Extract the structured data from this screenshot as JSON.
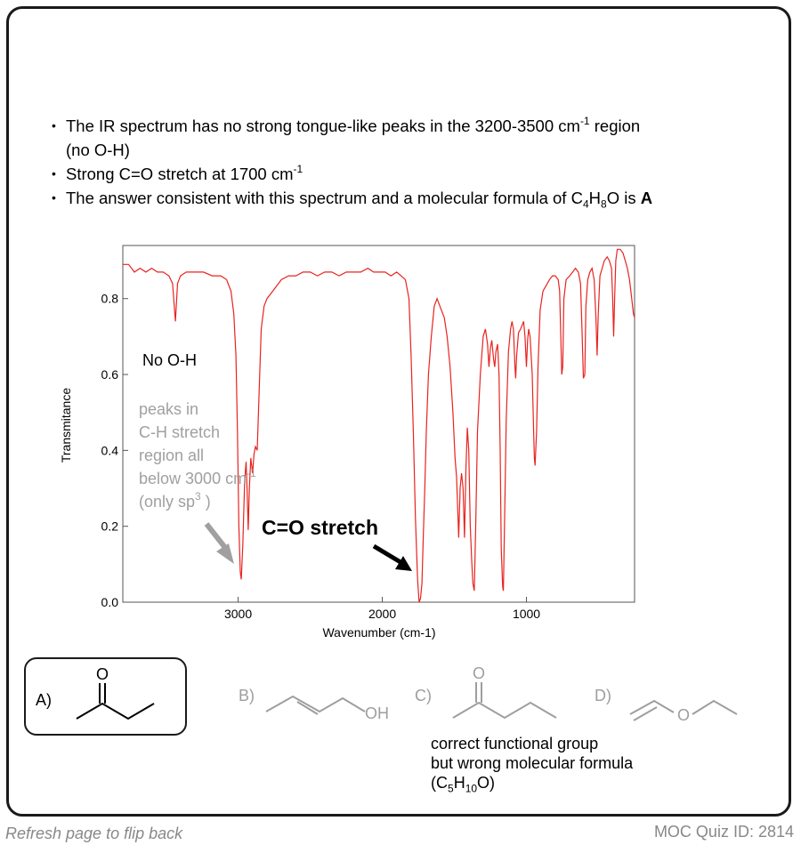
{
  "bullets": {
    "b1_part1": "The IR spectrum has no strong tongue-like peaks in the 3200-3500 cm",
    "b1_sup": "-1",
    "b1_part2": " region",
    "b1_line2": "(no O-H)",
    "b2_text": "Strong C=O stretch at 1700 cm",
    "b2_sup": "-1",
    "b3_text": "The answer consistent with this spectrum and a molecular formula of C",
    "b3_sub1": "4",
    "b3_h": "H",
    "b3_sub2": "8",
    "b3_o": "O is ",
    "b3_answer": "A"
  },
  "chart_data": {
    "type": "line",
    "xlabel": "Wavenumber (cm-1)",
    "ylabel": "Transmitance",
    "xlim": [
      3800,
      250
    ],
    "ylim": [
      0,
      0.94
    ],
    "x_reversed": true,
    "xticks": [
      3000,
      2000,
      1000
    ],
    "yticks": [
      0.0,
      0.2,
      0.4,
      0.6,
      0.8
    ],
    "ytick_labels": [
      "0.0",
      "0.2",
      "0.4",
      "0.6",
      "0.8"
    ],
    "series": [
      {
        "color": "#e8231f",
        "points": [
          [
            3800,
            0.89
          ],
          [
            3760,
            0.89
          ],
          [
            3720,
            0.87
          ],
          [
            3680,
            0.88
          ],
          [
            3640,
            0.87
          ],
          [
            3600,
            0.88
          ],
          [
            3560,
            0.87
          ],
          [
            3520,
            0.87
          ],
          [
            3480,
            0.86
          ],
          [
            3455,
            0.84
          ],
          [
            3435,
            0.74
          ],
          [
            3420,
            0.84
          ],
          [
            3400,
            0.86
          ],
          [
            3360,
            0.87
          ],
          [
            3300,
            0.87
          ],
          [
            3240,
            0.87
          ],
          [
            3180,
            0.86
          ],
          [
            3120,
            0.86
          ],
          [
            3080,
            0.85
          ],
          [
            3050,
            0.82
          ],
          [
            3030,
            0.76
          ],
          [
            3015,
            0.65
          ],
          [
            3005,
            0.45
          ],
          [
            2995,
            0.2
          ],
          [
            2985,
            0.08
          ],
          [
            2978,
            0.06
          ],
          [
            2968,
            0.15
          ],
          [
            2955,
            0.32
          ],
          [
            2945,
            0.37
          ],
          [
            2938,
            0.3
          ],
          [
            2930,
            0.19
          ],
          [
            2922,
            0.3
          ],
          [
            2912,
            0.38
          ],
          [
            2900,
            0.34
          ],
          [
            2890,
            0.39
          ],
          [
            2880,
            0.41
          ],
          [
            2868,
            0.4
          ],
          [
            2855,
            0.55
          ],
          [
            2840,
            0.72
          ],
          [
            2820,
            0.78
          ],
          [
            2800,
            0.8
          ],
          [
            2760,
            0.82
          ],
          [
            2700,
            0.85
          ],
          [
            2650,
            0.86
          ],
          [
            2600,
            0.86
          ],
          [
            2550,
            0.87
          ],
          [
            2500,
            0.87
          ],
          [
            2450,
            0.86
          ],
          [
            2400,
            0.87
          ],
          [
            2350,
            0.87
          ],
          [
            2300,
            0.86
          ],
          [
            2250,
            0.87
          ],
          [
            2200,
            0.87
          ],
          [
            2150,
            0.87
          ],
          [
            2100,
            0.88
          ],
          [
            2060,
            0.87
          ],
          [
            2020,
            0.87
          ],
          [
            1980,
            0.87
          ],
          [
            1940,
            0.86
          ],
          [
            1900,
            0.87
          ],
          [
            1870,
            0.86
          ],
          [
            1840,
            0.85
          ],
          [
            1815,
            0.8
          ],
          [
            1800,
            0.65
          ],
          [
            1785,
            0.45
          ],
          [
            1770,
            0.22
          ],
          [
            1755,
            0.06
          ],
          [
            1745,
            0.0
          ],
          [
            1735,
            0.01
          ],
          [
            1725,
            0.05
          ],
          [
            1715,
            0.18
          ],
          [
            1705,
            0.3
          ],
          [
            1695,
            0.45
          ],
          [
            1680,
            0.6
          ],
          [
            1660,
            0.7
          ],
          [
            1640,
            0.78
          ],
          [
            1620,
            0.8
          ],
          [
            1600,
            0.78
          ],
          [
            1570,
            0.75
          ],
          [
            1550,
            0.7
          ],
          [
            1530,
            0.62
          ],
          [
            1510,
            0.5
          ],
          [
            1495,
            0.38
          ],
          [
            1485,
            0.33
          ],
          [
            1470,
            0.17
          ],
          [
            1460,
            0.3
          ],
          [
            1450,
            0.34
          ],
          [
            1440,
            0.3
          ],
          [
            1430,
            0.17
          ],
          [
            1420,
            0.35
          ],
          [
            1410,
            0.46
          ],
          [
            1400,
            0.4
          ],
          [
            1390,
            0.2
          ],
          [
            1380,
            0.11
          ],
          [
            1372,
            0.05
          ],
          [
            1362,
            0.03
          ],
          [
            1352,
            0.2
          ],
          [
            1340,
            0.45
          ],
          [
            1320,
            0.6
          ],
          [
            1300,
            0.7
          ],
          [
            1285,
            0.72
          ],
          [
            1270,
            0.68
          ],
          [
            1260,
            0.62
          ],
          [
            1250,
            0.67
          ],
          [
            1240,
            0.69
          ],
          [
            1228,
            0.64
          ],
          [
            1220,
            0.62
          ],
          [
            1212,
            0.66
          ],
          [
            1200,
            0.68
          ],
          [
            1190,
            0.6
          ],
          [
            1182,
            0.4
          ],
          [
            1175,
            0.14
          ],
          [
            1165,
            0.04
          ],
          [
            1160,
            0.03
          ],
          [
            1150,
            0.25
          ],
          [
            1140,
            0.48
          ],
          [
            1125,
            0.66
          ],
          [
            1110,
            0.72
          ],
          [
            1100,
            0.74
          ],
          [
            1090,
            0.72
          ],
          [
            1080,
            0.62
          ],
          [
            1075,
            0.59
          ],
          [
            1068,
            0.65
          ],
          [
            1055,
            0.71
          ],
          [
            1040,
            0.72
          ],
          [
            1020,
            0.74
          ],
          [
            1010,
            0.7
          ],
          [
            1000,
            0.62
          ],
          [
            992,
            0.69
          ],
          [
            985,
            0.72
          ],
          [
            975,
            0.7
          ],
          [
            960,
            0.6
          ],
          [
            950,
            0.45
          ],
          [
            945,
            0.38
          ],
          [
            940,
            0.36
          ],
          [
            930,
            0.45
          ],
          [
            920,
            0.62
          ],
          [
            905,
            0.77
          ],
          [
            885,
            0.82
          ],
          [
            870,
            0.83
          ],
          [
            855,
            0.84
          ],
          [
            840,
            0.85
          ],
          [
            820,
            0.86
          ],
          [
            800,
            0.86
          ],
          [
            780,
            0.85
          ],
          [
            770,
            0.82
          ],
          [
            762,
            0.7
          ],
          [
            755,
            0.6
          ],
          [
            748,
            0.62
          ],
          [
            740,
            0.8
          ],
          [
            725,
            0.85
          ],
          [
            700,
            0.86
          ],
          [
            680,
            0.87
          ],
          [
            660,
            0.88
          ],
          [
            640,
            0.87
          ],
          [
            625,
            0.84
          ],
          [
            615,
            0.72
          ],
          [
            605,
            0.59
          ],
          [
            595,
            0.6
          ],
          [
            588,
            0.78
          ],
          [
            575,
            0.85
          ],
          [
            560,
            0.87
          ],
          [
            545,
            0.88
          ],
          [
            530,
            0.85
          ],
          [
            518,
            0.75
          ],
          [
            510,
            0.65
          ],
          [
            502,
            0.76
          ],
          [
            490,
            0.86
          ],
          [
            475,
            0.88
          ],
          [
            460,
            0.9
          ],
          [
            440,
            0.91
          ],
          [
            425,
            0.9
          ],
          [
            410,
            0.88
          ],
          [
            402,
            0.8
          ],
          [
            395,
            0.7
          ],
          [
            388,
            0.8
          ],
          [
            380,
            0.9
          ],
          [
            370,
            0.93
          ],
          [
            350,
            0.93
          ],
          [
            330,
            0.92
          ],
          [
            315,
            0.9
          ],
          [
            300,
            0.88
          ],
          [
            285,
            0.85
          ],
          [
            270,
            0.8
          ],
          [
            258,
            0.76
          ],
          [
            250,
            0.75
          ]
        ]
      }
    ],
    "annotations": {
      "no_oh": "No O-H",
      "ch_line1": "peaks in",
      "ch_line2": "C-H stretch",
      "ch_line3": "region all",
      "ch_line4a": "below 3000 cm",
      "ch_line4sup": "-1",
      "ch_line5a": "(only sp",
      "ch_line5sup": "3",
      "ch_line5b": " )",
      "co_label": "C=O stretch",
      "annotation_gray": "#a0a0a0"
    }
  },
  "options": {
    "a_label": "A)",
    "b_label": "B)",
    "c_label": "C)",
    "d_label": "D)",
    "oxygen": "O",
    "oh": "OH",
    "answer_gray": "#9e9e9e"
  },
  "note": {
    "line1": "correct functional group",
    "line2": "but wrong molecular formula",
    "line3a": "(C",
    "line3sub1": "5",
    "line3h": "H",
    "line3sub2": "10",
    "line3b": "O)"
  },
  "footer": {
    "left": "Refresh page to flip back",
    "right": "MOC Quiz ID: 2814"
  }
}
